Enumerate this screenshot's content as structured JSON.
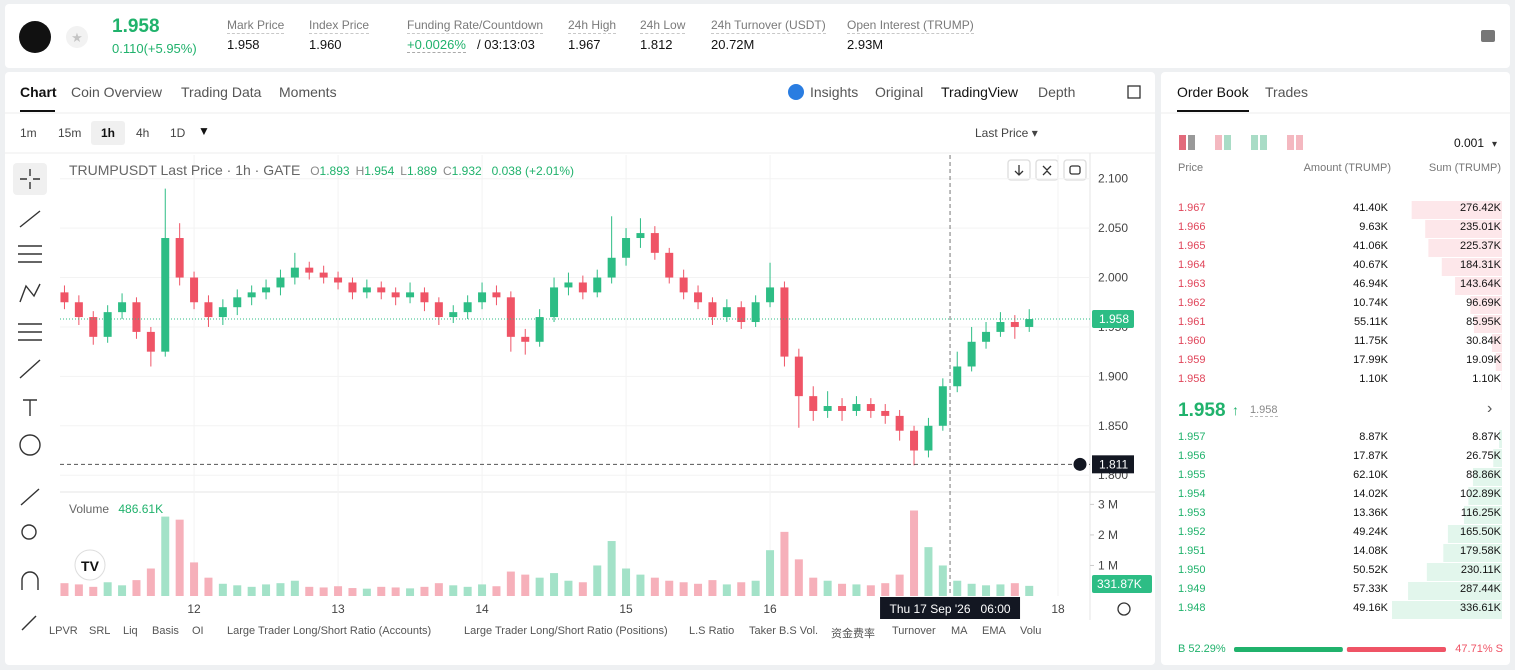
{
  "header": {
    "last_price": "1.958",
    "change": "0.110(+5.95%)",
    "stats": [
      {
        "label": "Mark Price",
        "value": "1.958"
      },
      {
        "label": "Index Price",
        "value": "1.960"
      },
      {
        "label": "Funding Rate/Countdown",
        "value": "+0.0026%",
        "extra": "/ 03:13:03"
      },
      {
        "label": "24h High",
        "value": "1.967"
      },
      {
        "label": "24h Low",
        "value": "1.812"
      },
      {
        "label": "24h Turnover (USDT)",
        "value": "20.72M"
      },
      {
        "label": "Open Interest (TRUMP)",
        "value": "2.93M"
      }
    ]
  },
  "tabs": [
    "Chart",
    "Coin Overview",
    "Trading Data",
    "Moments"
  ],
  "view_tabs": [
    "Insights",
    "Original",
    "TradingView",
    "Depth"
  ],
  "intervals": [
    "1m",
    "15m",
    "1h",
    "4h",
    "1D"
  ],
  "price_source": "Last Price",
  "legend": {
    "title": "TRUMPUSDT Last Price · 1h · GATE",
    "items": [
      {
        "key": "O",
        "value": "1.893"
      },
      {
        "key": "H",
        "value": "1.954"
      },
      {
        "key": "L",
        "value": "1.889"
      },
      {
        "key": "C",
        "value": "1.932"
      }
    ],
    "change": "0.038 (+2.01%)"
  },
  "chart_data": {
    "type": "candlestick",
    "x": [
      11.1,
      11.2,
      11.3,
      11.4,
      11.5,
      11.6,
      11.7,
      11.8,
      11.9,
      12.0,
      12.1,
      12.2,
      12.3,
      12.4,
      12.5,
      12.6,
      12.7,
      12.8,
      12.9,
      13.0,
      13.1,
      13.2,
      13.3,
      13.4,
      13.5,
      13.6,
      13.7,
      13.8,
      13.9,
      14.0,
      14.1,
      14.2,
      14.3,
      14.4,
      14.5,
      14.6,
      14.7,
      14.8,
      14.9,
      15.0,
      15.1,
      15.2,
      15.3,
      15.4,
      15.5,
      15.6,
      15.7,
      15.8,
      15.9,
      16.0,
      16.1,
      16.2,
      16.3,
      16.4,
      16.5,
      16.6,
      16.7,
      16.8,
      16.9,
      17.0,
      17.1,
      17.2,
      17.3,
      17.4,
      17.5,
      17.6,
      17.7,
      17.8
    ],
    "candles": [
      [
        1.985,
        1.992,
        1.968,
        1.975
      ],
      [
        1.975,
        1.982,
        1.952,
        1.96
      ],
      [
        1.96,
        1.966,
        1.932,
        1.94
      ],
      [
        1.94,
        1.972,
        1.934,
        1.965
      ],
      [
        1.965,
        1.984,
        1.958,
        1.975
      ],
      [
        1.975,
        1.98,
        1.938,
        1.945
      ],
      [
        1.945,
        1.95,
        1.91,
        1.925
      ],
      [
        1.925,
        2.09,
        1.92,
        2.04
      ],
      [
        2.04,
        2.055,
        1.992,
        2.0
      ],
      [
        2.0,
        2.006,
        1.968,
        1.975
      ],
      [
        1.975,
        1.982,
        1.95,
        1.96
      ],
      [
        1.96,
        1.978,
        1.952,
        1.97
      ],
      [
        1.97,
        1.988,
        1.962,
        1.98
      ],
      [
        1.98,
        1.992,
        1.972,
        1.985
      ],
      [
        1.985,
        1.998,
        1.978,
        1.99
      ],
      [
        1.99,
        2.008,
        1.982,
        2.0
      ],
      [
        2.0,
        2.025,
        1.993,
        2.01
      ],
      [
        2.01,
        2.016,
        1.998,
        2.005
      ],
      [
        2.005,
        2.012,
        1.994,
        2.0
      ],
      [
        2.0,
        2.006,
        1.988,
        1.995
      ],
      [
        1.995,
        2.0,
        1.978,
        1.985
      ],
      [
        1.985,
        1.998,
        1.979,
        1.99
      ],
      [
        1.99,
        1.996,
        1.978,
        1.985
      ],
      [
        1.985,
        1.99,
        1.972,
        1.98
      ],
      [
        1.98,
        1.995,
        1.974,
        1.985
      ],
      [
        1.985,
        1.99,
        1.966,
        1.975
      ],
      [
        1.975,
        1.98,
        1.952,
        1.96
      ],
      [
        1.96,
        1.972,
        1.954,
        1.965
      ],
      [
        1.965,
        1.982,
        1.958,
        1.975
      ],
      [
        1.975,
        1.995,
        1.968,
        1.985
      ],
      [
        1.985,
        1.992,
        1.972,
        1.98
      ],
      [
        1.98,
        1.986,
        1.925,
        1.94
      ],
      [
        1.94,
        1.948,
        1.922,
        1.935
      ],
      [
        1.935,
        1.968,
        1.93,
        1.96
      ],
      [
        1.96,
        2.0,
        1.955,
        1.99
      ],
      [
        1.99,
        2.005,
        1.982,
        1.995
      ],
      [
        1.995,
        2.002,
        1.978,
        1.985
      ],
      [
        1.985,
        2.008,
        1.98,
        2.0
      ],
      [
        2.0,
        2.062,
        1.994,
        2.02
      ],
      [
        2.02,
        2.05,
        2.012,
        2.04
      ],
      [
        2.04,
        2.06,
        2.03,
        2.045
      ],
      [
        2.045,
        2.052,
        2.018,
        2.025
      ],
      [
        2.025,
        2.03,
        1.994,
        2.0
      ],
      [
        2.0,
        2.008,
        1.978,
        1.985
      ],
      [
        1.985,
        1.992,
        1.968,
        1.975
      ],
      [
        1.975,
        1.98,
        1.952,
        1.96
      ],
      [
        1.96,
        1.978,
        1.955,
        1.97
      ],
      [
        1.97,
        1.976,
        1.948,
        1.955
      ],
      [
        1.955,
        1.982,
        1.95,
        1.975
      ],
      [
        1.975,
        2.015,
        1.97,
        1.99
      ],
      [
        1.99,
        1.996,
        1.91,
        1.92
      ],
      [
        1.92,
        1.928,
        1.848,
        1.88
      ],
      [
        1.88,
        1.89,
        1.855,
        1.865
      ],
      [
        1.865,
        1.885,
        1.858,
        1.87
      ],
      [
        1.87,
        1.878,
        1.855,
        1.865
      ],
      [
        1.865,
        1.88,
        1.86,
        1.872
      ],
      [
        1.872,
        1.878,
        1.858,
        1.865
      ],
      [
        1.865,
        1.872,
        1.852,
        1.86
      ],
      [
        1.86,
        1.866,
        1.835,
        1.845
      ],
      [
        1.845,
        1.85,
        1.81,
        1.825
      ],
      [
        1.825,
        1.858,
        1.818,
        1.85
      ],
      [
        1.85,
        1.898,
        1.845,
        1.89
      ],
      [
        1.89,
        1.925,
        1.884,
        1.91
      ],
      [
        1.91,
        1.95,
        1.905,
        1.935
      ],
      [
        1.935,
        1.955,
        1.928,
        1.945
      ],
      [
        1.945,
        1.965,
        1.94,
        1.955
      ],
      [
        1.955,
        1.962,
        1.938,
        1.95
      ],
      [
        1.95,
        1.968,
        1.945,
        1.958
      ]
    ],
    "volumes": [
      420000,
      380000,
      300000,
      450000,
      350000,
      520000,
      900000,
      2600000,
      2500000,
      1100000,
      600000,
      400000,
      350000,
      300000,
      380000,
      420000,
      500000,
      300000,
      280000,
      320000,
      260000,
      240000,
      300000,
      280000,
      250000,
      300000,
      420000,
      350000,
      300000,
      380000,
      320000,
      800000,
      700000,
      600000,
      750000,
      500000,
      450000,
      1000000,
      1800000,
      900000,
      700000,
      600000,
      500000,
      450000,
      400000,
      520000,
      380000,
      450000,
      500000,
      1500000,
      2100000,
      1200000,
      600000,
      500000,
      400000,
      380000,
      350000,
      420000,
      700000,
      2800000,
      1600000,
      1000000,
      500000,
      400000,
      350000,
      380000,
      420000,
      331870
    ],
    "up_color": "#2dbd85",
    "down_color": "#ef5466",
    "up_volume_color": "#a3e2c8",
    "down_volume_color": "#f6b0ba",
    "xlim": [
      11.069,
      18.222
    ],
    "xticks": [
      12,
      13,
      14,
      15,
      16,
      18
    ],
    "ylim": [
      1.783,
      2.124
    ],
    "yticks": [
      {
        "value": 1.8,
        "label": "1.800"
      },
      {
        "value": 1.85,
        "label": "1.850"
      },
      {
        "value": 1.9,
        "label": "1.900"
      },
      {
        "value": 1.95,
        "label": "1.950"
      },
      {
        "value": 2.0,
        "label": "2.000"
      },
      {
        "value": 2.05,
        "label": "2.050"
      },
      {
        "value": 2.1,
        "label": "2.100"
      }
    ],
    "volume_title": "Volume",
    "volume_value": "486.61K",
    "vlim": [
      0,
      3340000
    ],
    "vticks": [
      {
        "value": 1000000,
        "label": "1 M"
      },
      {
        "value": 2000000,
        "label": "2 M"
      },
      {
        "value": 3000000,
        "label": "3 M"
      }
    ],
    "volume_last": {
      "value": 331870,
      "label": "331.87K"
    },
    "last_price": 1.958,
    "crosshair": {
      "price": 1.811,
      "x": 17.25,
      "x_label": "Thu 17 Sep '26   06:00"
    },
    "grid": true
  },
  "indicators": [
    "LPVR",
    "SRL",
    "Liq",
    "Basis",
    "OI",
    "Large Trader Long/Short Ratio (Accounts)",
    "Large Trader Long/Short Ratio (Positions)",
    "L.S Ratio",
    "Taker B.S Vol.",
    "资金费率",
    "Turnover",
    "MA",
    "EMA",
    "Volu"
  ],
  "order_book": {
    "tabs": [
      "Order Book",
      "Trades"
    ],
    "precision": "0.001",
    "columns": [
      "Price",
      "Amount (TRUMP)",
      "Sum (TRUMP)"
    ],
    "asks": {
      "prices": [
        "1.967",
        "1.966",
        "1.965",
        "1.964",
        "1.963",
        "1.962",
        "1.961",
        "1.960",
        "1.959",
        "1.958"
      ],
      "amounts": [
        "41.40K",
        "9.63K",
        "41.06K",
        "40.67K",
        "46.94K",
        "10.74K",
        "55.11K",
        "11.75K",
        "17.99K",
        "1.10K"
      ],
      "values": [
        276420,
        235010,
        225370,
        184310,
        143640,
        96690,
        85950,
        30840,
        19090,
        1100
      ],
      "value_labels": [
        "276.42K",
        "235.01K",
        "225.37K",
        "184.31K",
        "143.64K",
        "96.69K",
        "85.95K",
        "30.84K",
        "19.09K",
        "1.10K"
      ]
    },
    "mid_price": "1.958",
    "mark_price": "1.958",
    "bids": {
      "prices": [
        "1.957",
        "1.956",
        "1.955",
        "1.954",
        "1.953",
        "1.952",
        "1.951",
        "1.950",
        "1.949",
        "1.948"
      ],
      "amounts": [
        "8.87K",
        "17.87K",
        "62.10K",
        "14.02K",
        "13.36K",
        "49.24K",
        "14.08K",
        "50.52K",
        "57.33K",
        "49.16K"
      ],
      "values": [
        8870,
        26750,
        88860,
        102890,
        116250,
        165500,
        179580,
        230110,
        287440,
        336610
      ],
      "value_labels": [
        "8.87K",
        "26.75K",
        "88.86K",
        "102.89K",
        "116.25K",
        "165.50K",
        "179.58K",
        "230.11K",
        "287.44K",
        "336.61K"
      ]
    },
    "buy_ratio": {
      "value": 52.29,
      "label": "B 52.29%"
    },
    "sell_ratio": {
      "value": 47.71,
      "label": "47.71% S"
    }
  }
}
